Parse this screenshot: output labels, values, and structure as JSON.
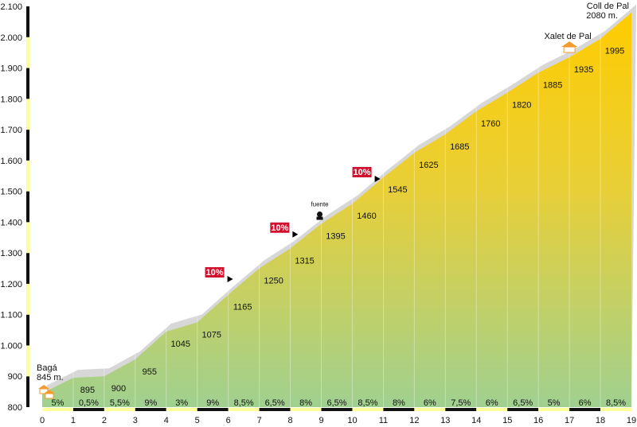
{
  "chart_data": {
    "type": "area",
    "title": "",
    "xlabel": "",
    "ylabel": "",
    "xlim": [
      0,
      19
    ],
    "ylim": [
      800,
      2100
    ],
    "y_ticks": [
      800,
      900,
      1000,
      1100,
      1200,
      1300,
      1400,
      1500,
      1600,
      1700,
      1800,
      1900,
      2000,
      2100
    ],
    "y_tick_labels": [
      "800",
      "900",
      "1.000",
      "1.100",
      "1.200",
      "1.300",
      "1.400",
      "1.500",
      "1.600",
      "1.700",
      "1.800",
      "1.900",
      "2.000",
      "2.100"
    ],
    "x_ticks": [
      0,
      1,
      2,
      3,
      4,
      5,
      6,
      7,
      8,
      9,
      10,
      11,
      12,
      13,
      14,
      15,
      16,
      17,
      18,
      19
    ],
    "x_tick_labels": [
      "0",
      "1",
      "2",
      "3",
      "4",
      "5",
      "6",
      "7",
      "8",
      "9",
      "10",
      "11",
      "12",
      "13",
      "14",
      "15",
      "16",
      "17",
      "18",
      "19"
    ],
    "grid": true,
    "series": [
      {
        "x": [
          0,
          1,
          2,
          3,
          4,
          5,
          6,
          7,
          8,
          9,
          10,
          11,
          12,
          13,
          14,
          15,
          16,
          17,
          18,
          19
        ],
        "values": [
          845,
          895,
          900,
          955,
          1045,
          1075,
          1165,
          1250,
          1315,
          1395,
          1460,
          1545,
          1625,
          1685,
          1760,
          1820,
          1885,
          1935,
          1995,
          2080
        ]
      }
    ],
    "point_labels": [
      {
        "km": 1,
        "label": "895"
      },
      {
        "km": 2,
        "label": "900"
      },
      {
        "km": 3,
        "label": "955"
      },
      {
        "km": 4,
        "label": "1045"
      },
      {
        "km": 5,
        "label": "1075"
      },
      {
        "km": 6,
        "label": "1165"
      },
      {
        "km": 7,
        "label": "1250"
      },
      {
        "km": 8,
        "label": "1315"
      },
      {
        "km": 9,
        "label": "1395"
      },
      {
        "km": 10,
        "label": "1460"
      },
      {
        "km": 11,
        "label": "1545"
      },
      {
        "km": 12,
        "label": "1625"
      },
      {
        "km": 13,
        "label": "1685"
      },
      {
        "km": 14,
        "label": "1760"
      },
      {
        "km": 15,
        "label": "1820"
      },
      {
        "km": 16,
        "label": "1885"
      },
      {
        "km": 17,
        "label": "1935"
      },
      {
        "km": 18,
        "label": "1995"
      }
    ],
    "segment_gradients": [
      "5%",
      "0,5%",
      "5,5%",
      "9%",
      "3%",
      "9%",
      "8,5%",
      "6,5%",
      "8%",
      "6,5%",
      "8,5%",
      "8%",
      "6%",
      "7,5%",
      "6%",
      "6,5%",
      "5%",
      "6%",
      "8,5%"
    ],
    "steep_markers": [
      {
        "label": "10%",
        "km": 6.1,
        "elev": 1205
      },
      {
        "label": "10%",
        "km": 8.2,
        "elev": 1350
      },
      {
        "label": "10%",
        "km": 10.85,
        "elev": 1530
      }
    ],
    "places": [
      {
        "name": "Bagá",
        "elevation_label": "845 m.",
        "km": 0,
        "icon": "house-icon"
      },
      {
        "name": "Xalet de Pal",
        "km": 17,
        "icon": "house-icon"
      },
      {
        "name": "Coll de Pal",
        "elevation_label": "2080 m.",
        "km": 19
      },
      {
        "name": "fuente",
        "km": 9,
        "elev": 1410,
        "icon": "fountain-icon"
      }
    ],
    "colors": {
      "fill_top": "#ffcc00",
      "fill_bottom": "#a0d090",
      "shadow": "#d7d7d7",
      "marker_red": "#d2102e",
      "house_orange": "#f39a2c",
      "axis_dark": "#111111",
      "axis_light": "#ffff99"
    }
  }
}
